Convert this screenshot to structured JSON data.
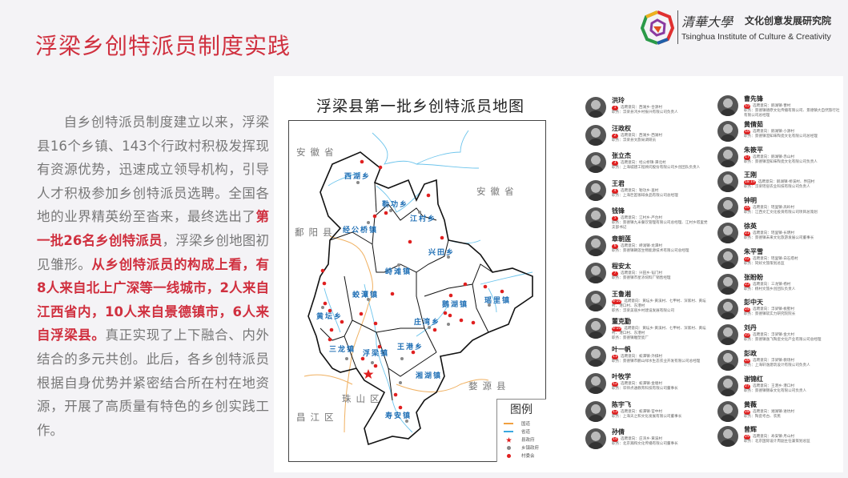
{
  "slide": {
    "title": "浮梁乡创特派员制度实践",
    "accent_color": "#d0303f"
  },
  "logo": {
    "calligraphy": "清華大學",
    "institute_cn": "文化创意发展研究院",
    "institute_en": "Tsinghua Institute of Culture & Creativity"
  },
  "paragraph": [
    {
      "text": "自乡创特派员制度建立以来，浮梁县16个乡镇、143个行政村积极发挥现有资源优势，迅速成立领导机构，引导人才积极参加乡创特派员选聘。全国各地的业界精英纷至沓来，最终选出了",
      "highlight": false
    },
    {
      "text": "第一批26名乡创特派员",
      "highlight": true
    },
    {
      "text": "，浮梁乡创地图初见雏形。",
      "highlight": false
    },
    {
      "text": "从乡创特派员的构成上看，有8人来自北上广深等一线城市，2人来自江西省内，10人来自景德镇市，6人来自浮梁县。",
      "highlight": true
    },
    {
      "text": "真正实现了上下融合、内外结合的多元共创。此后，各乡创特派员根据自身优势并紧密结合所在村在地资源，开展了高质量有特色的乡创实践工作。",
      "highlight": false
    }
  ],
  "map": {
    "title": "浮梁县第一批乡创特派员地图",
    "neighbors": [
      "安徽省",
      "安徽省",
      "鄱阳县",
      "婺源县",
      "珠山区",
      "昌江区"
    ],
    "towns": [
      "西湖乡",
      "勒功乡",
      "江村乡",
      "经公桥镇",
      "兴田乡",
      "峙滩镇",
      "蛟潭镇",
      "黄坛乡",
      "鹅湖镇",
      "瑶里镇",
      "庄湾乡",
      "三龙镇",
      "浮梁镇",
      "王港乡",
      "湘湖镇",
      "寿安镇"
    ],
    "legend": {
      "title": "图例",
      "items": [
        {
          "label": "国道",
          "symbol": "line",
          "color": "#f0a040"
        },
        {
          "label": "省道",
          "symbol": "line",
          "color": "#3aa8e0"
        },
        {
          "label": "县政府",
          "symbol": "star",
          "color": "#e02020"
        },
        {
          "label": "乡镇政府",
          "symbol": "dot",
          "color": "#888888"
        },
        {
          "label": "村委会",
          "symbol": "dot",
          "color": "#e02020"
        }
      ]
    }
  },
  "people_left": [
    {
      "name": "洪玲",
      "num": "1",
      "intent": "选聘意向：西湖乡·合源村",
      "role": "职务：浮梁县鸿乡村振兴有限公司负责人"
    },
    {
      "name": "汪政权",
      "num": "2",
      "intent": "选聘意向：西湖乡·西湖村",
      "role": "职务：浮梁县文旅局调研员"
    },
    {
      "name": "张立杰",
      "num": "3",
      "intent": "选聘意向：经公桥镇·潭北村",
      "role": "职务：上海城建工程顾问股份有限公司乡创团队负责人"
    },
    {
      "name": "王君",
      "num": "4",
      "intent": "选聘意向：勒功乡·查村",
      "role": "职务：上海巨匠咖啡食品有限公司总经理"
    },
    {
      "name": "钱锋",
      "num": "5",
      "intent": "选聘意向：江村乡·严台村",
      "role": "职务：景德镇九米餐饮管理有限公司总经理、江村乡塔里党支部书记"
    },
    {
      "name": "章朝莲",
      "num": "6",
      "intent": "选聘意向：峙滩镇·龙潭村",
      "role": "职务：景德镇朝莲生物能源技术有限公司总经理"
    },
    {
      "name": "程安太",
      "num": "7",
      "intent": "选聘意向：兴田乡·韬门村",
      "role": "职务：景德镇市星浓饲料厂销售经理"
    },
    {
      "name": "王鲁湘",
      "num": "8-10",
      "intent": "选聘意向：黄坛乡·黄溪村、七甲村、深家村、黄坛村、港口村、东港村",
      "role": "职务：浮梁美丽乡村建设发展有限公司"
    },
    {
      "name": "董克勤",
      "num": "8-10",
      "intent": "选聘意向：黄坛乡·黄溪村、七甲村、深家村、黄坛村、港口村、东港村",
      "role": "职务：景德镇雕塑瓷厂"
    },
    {
      "name": "叶一帆",
      "num": "11",
      "intent": "选聘意向：蛟潭镇·外棋村",
      "role": "职务：景德镇市鹏山绿水生态农业开发有限公司总经理"
    },
    {
      "name": "叶牧学",
      "num": "12",
      "intent": "选聘意向：蛟潭镇·金塘村",
      "role": "职务：华师点通教育科技有限公司董事长"
    },
    {
      "name": "陈宇飞",
      "num": "13",
      "intent": "选聘意向：蛟潭镇·官中村",
      "role": "职务：上海天之和文化发展有限公司董事长"
    },
    {
      "name": "孙倩",
      "num": "14",
      "intent": "选聘意向：庄湾乡·黄溪村",
      "role": "职务：北京瀚和文化传播有限公司董事长"
    }
  ],
  "people_right": [
    {
      "name": "曹先锋",
      "num": "15",
      "intent": "选聘意向：鹅湖镇·曹村",
      "role": "职务：景德镇德原文化传播有限公司、景德镇大自然旅行社有限公司总经理"
    },
    {
      "name": "黄倩茹",
      "num": "16",
      "intent": "选聘意向：鹅湖镇·小源村",
      "role": "职务：景德镇澄知味陶瓷文化有限公司总经理"
    },
    {
      "name": "朱筱平",
      "num": "17",
      "intent": "选聘意向：鹅湖镇·赤山村",
      "role": "职务：景德镇澄知味陶瓷文化有限公司负责人"
    },
    {
      "name": "王刚",
      "num": "18 19",
      "intent": "选聘意向：鹅湖镇·桥溪村、界田村",
      "role": "职务：浮梁瑶窑农业科技有限公司负责人"
    },
    {
      "name": "钟明",
      "num": "20",
      "intent": "选聘意向：瑶里镇·高岭村",
      "role": "职务：江西文汇文化投资有限公司项目总策划"
    },
    {
      "name": "徐英",
      "num": "21",
      "intent": "选聘意向：瑶里镇·长明村",
      "role": "职务：景德镇未来文化旅游发展公司董事长"
    },
    {
      "name": "朱平雪",
      "num": "22",
      "intent": "选聘意向：瑶里镇·白石塔村",
      "role": "职务：同好文旅策划总监"
    },
    {
      "name": "张盼盼",
      "num": "23",
      "intent": "选聘意向：三龙镇·杨村",
      "role": "职务：杨村文旅乡创团队负责人"
    },
    {
      "name": "彭中天",
      "num": "24",
      "intent": "选聘意向：浮梁镇·桃墅村",
      "role": "职务：景德镇软实力研究院院长"
    },
    {
      "name": "刘丹",
      "num": "25",
      "intent": "选聘意向：浮梁镇·金大村",
      "role": "职务：景德镇逸飞陶瓷文化产业有限公司总经理"
    },
    {
      "name": "彭政",
      "num": "26",
      "intent": "选聘意向：浮梁镇·教场村",
      "role": "职务：上海轩逸建筑设计有限公司负责人"
    },
    {
      "name": "谢锦红",
      "num": "27",
      "intent": "选聘意向：王港乡·港口村",
      "role": "职务：景德镇锦泰文化有限公司负责人"
    },
    {
      "name": "黄薇",
      "num": "28",
      "intent": "选聘意向：湘湖镇·进坑村",
      "role": "职务：陶瓷考古、农民"
    },
    {
      "name": "曾辉",
      "num": "29",
      "intent": "选聘意向：寿安镇·月山村",
      "role": "职务：北京国际设计周副主任兼策划总监"
    }
  ]
}
